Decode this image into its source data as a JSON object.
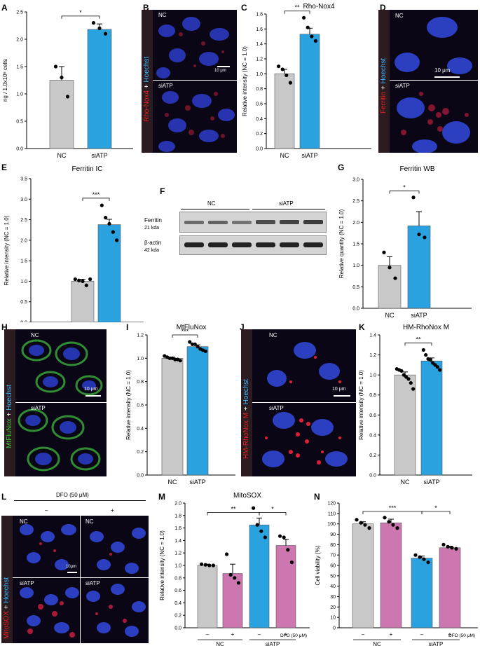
{
  "panel_labels": {
    "A": "A",
    "B": "B",
    "C": "C",
    "D": "D",
    "E": "E",
    "F": "F",
    "G": "G",
    "H": "H",
    "I": "I",
    "J": "J",
    "K": "K",
    "L": "L",
    "M": "M",
    "N": "N"
  },
  "images": {
    "B": {
      "stain": "Rho-Nox4",
      "plus": " + ",
      "counter": "Hoechst",
      "top": "NC",
      "bottom": "siATP",
      "scale": "10 μm"
    },
    "D": {
      "stain": "Ferritin",
      "plus": " + ",
      "counter": "Hoechst",
      "top": "NC",
      "bottom": "siATP",
      "scale": "10 μm"
    },
    "H": {
      "stain": "MtFluNox",
      "plus": " + ",
      "counter": "Hoechst",
      "top": "NC",
      "bottom": "siATP",
      "scale": "10 μm"
    },
    "J": {
      "stain": "HM-RhoNox M",
      "plus": " + ",
      "counter": "Hoechst",
      "top": "NC",
      "bottom": "siATP",
      "scale": "10 μm"
    },
    "L": {
      "stain": "MitoSOX",
      "plus": " + ",
      "counter": "Hoechst",
      "header": "DFO (50 μM)",
      "minus": "–",
      "plus_sign": "+",
      "tl": "NC",
      "tr": "NC",
      "bl": "siATP",
      "br": "siATP",
      "scale": "10μm"
    }
  },
  "western": {
    "groups": [
      "NC",
      "siATP"
    ],
    "rows": [
      {
        "name": "Ferritin",
        "size": "21 kda"
      },
      {
        "name": "β-actin",
        "size": "42 kda"
      }
    ]
  },
  "colors": {
    "nc": "#c8c8c8",
    "siatp": "#2ba2e0",
    "dfo": "#cc77b0"
  },
  "chart_data": [
    {
      "id": "A",
      "type": "bar",
      "title": "",
      "ylabel": "ng / 1.0x10⁶ cells",
      "ylim": [
        0,
        2.5
      ],
      "yticks": [
        "0.0",
        "0.5",
        "1.0",
        "1.5",
        "2.0",
        "2.5"
      ],
      "categories": [
        "NC",
        "siATP"
      ],
      "values": [
        1.25,
        2.18
      ],
      "errors": [
        0.25,
        0.1
      ],
      "points": [
        [
          1.5,
          1.3,
          0.95
        ],
        [
          2.3,
          2.2,
          2.1
        ]
      ],
      "sig": "*"
    },
    {
      "id": "C",
      "type": "bar",
      "title": "Rho-Nox4",
      "ylabel": "Relative intensity (NC = 1.0)",
      "ylim": [
        0,
        1.8
      ],
      "yticks": [
        "0.0",
        "0.2",
        "0.4",
        "0.6",
        "0.8",
        "1.0",
        "1.2",
        "1.4",
        "1.6",
        "1.8"
      ],
      "categories": [
        "NC",
        "siATP"
      ],
      "values": [
        1.0,
        1.53
      ],
      "errors": [
        0.06,
        0.08
      ],
      "points": [
        [
          1.1,
          1.06,
          0.98,
          0.88
        ],
        [
          1.75,
          1.62,
          1.5,
          1.44
        ]
      ],
      "sig": "**"
    },
    {
      "id": "E",
      "type": "bar",
      "title": "Ferritin IC",
      "ylabel": "Relative intensity (NC = 1.0)",
      "ylim": [
        0,
        3.5
      ],
      "yticks": [
        "0.0",
        "0.5",
        "1.0",
        "1.5",
        "2.0",
        "2.5",
        "3.0",
        "3.5"
      ],
      "categories": [
        "NC",
        "siATP"
      ],
      "values": [
        1.0,
        2.38
      ],
      "errors": [
        0.05,
        0.13
      ],
      "points": [
        [
          1.05,
          1.02,
          1.0,
          0.9,
          1.05
        ],
        [
          2.85,
          2.55,
          2.4,
          2.2,
          2.0
        ]
      ],
      "sig": "***"
    },
    {
      "id": "G",
      "type": "bar",
      "title": "Ferritin WB",
      "ylabel": "Relative quantity (NC = 1.0)",
      "ylim": [
        0,
        3.0
      ],
      "yticks": [
        "0.0",
        "0.5",
        "1.0",
        "1.5",
        "2.0",
        "2.5",
        "3.0"
      ],
      "categories": [
        "NC",
        "siATP"
      ],
      "values": [
        1.0,
        1.92
      ],
      "errors": [
        0.2,
        0.33
      ],
      "points": [
        [
          1.3,
          0.95,
          0.7
        ],
        [
          2.58,
          1.72,
          1.65
        ]
      ],
      "sig": "*"
    },
    {
      "id": "I",
      "type": "bar",
      "title": "MtFluNox",
      "ylabel": "Relative intensity (NC = 1.0)",
      "ylim": [
        0,
        1.2
      ],
      "yticks": [
        "0.0",
        "0.2",
        "0.4",
        "0.6",
        "0.8",
        "1.0",
        "1.2"
      ],
      "categories": [
        "NC",
        "siATP"
      ],
      "values": [
        1.0,
        1.1
      ],
      "errors": [
        0.01,
        0.015
      ],
      "points": [
        [
          1.02,
          1.01,
          1.0,
          1.0,
          0.99,
          0.99,
          0.98
        ],
        [
          1.14,
          1.12,
          1.12,
          1.1,
          1.08,
          1.07,
          1.06
        ]
      ],
      "sig": "***"
    },
    {
      "id": "K",
      "type": "bar",
      "title": "HM-RhoNox M",
      "ylabel": "Relative intensity (NC = 1.0)",
      "ylim": [
        0,
        1.4
      ],
      "yticks": [
        "0.0",
        "0.2",
        "0.4",
        "0.6",
        "0.8",
        "1.0",
        "1.2",
        "1.4"
      ],
      "categories": [
        "NC",
        "siATP"
      ],
      "values": [
        1.0,
        1.14
      ],
      "errors": [
        0.03,
        0.03
      ],
      "points": [
        [
          1.06,
          1.05,
          1.04,
          1.0,
          0.98,
          0.96,
          0.92,
          0.86
        ],
        [
          1.25,
          1.2,
          1.16,
          1.15,
          1.12,
          1.1,
          1.08,
          1.05
        ]
      ],
      "sig": "**"
    },
    {
      "id": "M",
      "type": "bar",
      "title": "MitoSOX",
      "ylabel": "Relative intensity (NC = 1.0)",
      "ylim": [
        0,
        2.0
      ],
      "yticks": [
        "0.0",
        "0.2",
        "0.4",
        "0.6",
        "0.8",
        "1.0",
        "1.2",
        "1.4",
        "1.6",
        "1.8",
        "2.0"
      ],
      "categories": [
        "–",
        "+",
        "–",
        "+"
      ],
      "groups": [
        "NC",
        "siATP"
      ],
      "dfo_label": "DFO (50 μM)",
      "values": [
        1.0,
        0.87,
        1.65,
        1.32
      ],
      "errors": [
        0.02,
        0.15,
        0.11,
        0.1
      ],
      "points": [
        [
          1.02,
          1.01,
          1.0,
          1.0
        ],
        [
          1.18,
          0.85,
          0.8,
          0.72
        ],
        [
          1.92,
          1.65,
          1.55,
          1.45
        ],
        [
          1.47,
          1.45,
          1.25,
          1.05
        ]
      ],
      "sigs": [
        {
          "text": "**",
          "a": 0,
          "b": 2,
          "y": 1.85
        },
        {
          "text": "*",
          "a": 2,
          "b": 3,
          "y": 1.85
        }
      ]
    },
    {
      "id": "N",
      "type": "bar",
      "title": "",
      "ylabel": "Cell viability (%)",
      "ylim": [
        0,
        120
      ],
      "yticks": [
        "0",
        "10",
        "20",
        "30",
        "40",
        "50",
        "60",
        "70",
        "80",
        "90",
        "100",
        "110",
        "120"
      ],
      "categories": [
        "–",
        "+",
        "–",
        "+"
      ],
      "groups": [
        "NC",
        "siATP"
      ],
      "dfo_label": "DFO (50 μM)",
      "values": [
        100,
        101,
        67,
        77
      ],
      "errors": [
        2,
        3.5,
        2,
        1.5
      ],
      "points": [
        [
          104,
          101,
          99,
          96
        ],
        [
          106,
          102,
          99,
          96
        ],
        [
          70,
          68,
          66,
          63
        ],
        [
          80,
          78,
          77,
          76
        ]
      ],
      "sigs": [
        {
          "text": "***",
          "a": 0,
          "b": 2,
          "y": 112
        },
        {
          "text": "*",
          "a": 2,
          "b": 3,
          "y": 112
        }
      ]
    }
  ]
}
